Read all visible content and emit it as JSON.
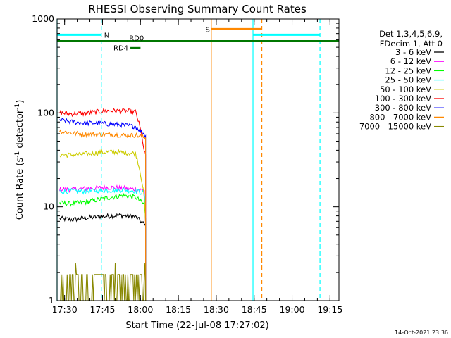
{
  "chart_data": {
    "type": "line",
    "title": "RHESSI Observing Summary Count Rates",
    "xlabel": "Start Time (22-Jul-08 17:27:02)",
    "ylabel_main": "Count Rate (s",
    "ylabel_sup1": "-1",
    "ylabel_mid": " detector",
    "ylabel_sup2": "-1",
    "ylabel_end": ")",
    "x_unit": "minutes after 17:27:02 UT",
    "xlim": [
      0,
      111.5
    ],
    "ylim": [
      1,
      1000
    ],
    "y_scale": "log",
    "x_ticks": [
      {
        "t": 2.97,
        "label": "17:30"
      },
      {
        "t": 17.97,
        "label": "17:45"
      },
      {
        "t": 32.97,
        "label": "18:00"
      },
      {
        "t": 47.97,
        "label": "18:15"
      },
      {
        "t": 62.97,
        "label": "18:30"
      },
      {
        "t": 77.97,
        "label": "18:45"
      },
      {
        "t": 92.97,
        "label": "19:00"
      },
      {
        "t": 107.97,
        "label": "19:15"
      }
    ],
    "y_ticks": [
      {
        "v": 1,
        "label": "1"
      },
      {
        "v": 10,
        "label": "10"
      },
      {
        "v": 100,
        "label": "100"
      },
      {
        "v": 1000,
        "label": "1000"
      }
    ],
    "legend_title_1": "Det 1,3,4,5,6,9,",
    "legend_title_2": "FDecim 1, Att 0",
    "legend_position": "outside-right",
    "series": [
      {
        "name": "3 - 6 keV",
        "color": "#000000",
        "t": [
          1,
          6,
          11,
          16,
          21,
          26,
          31,
          34.5,
          35
        ],
        "values": [
          7.5,
          7.3,
          7.6,
          7.8,
          8.0,
          8.1,
          7.8,
          6.5,
          6.2
        ]
      },
      {
        "name": "6 - 12 keV",
        "color": "#ff00ff",
        "t": [
          1,
          6,
          11,
          16,
          21,
          26,
          31,
          34.5,
          35
        ],
        "values": [
          15.5,
          15.2,
          15.6,
          15.9,
          16.1,
          15.8,
          15.4,
          15.0,
          6.5
        ]
      },
      {
        "name": "12 - 25 keV",
        "color": "#00ff00",
        "t": [
          1,
          6,
          11,
          16,
          21,
          26,
          31,
          34.5,
          35
        ],
        "values": [
          11.0,
          10.8,
          11.2,
          11.9,
          12.6,
          13.2,
          12.7,
          10.5,
          7.5
        ]
      },
      {
        "name": "25 - 50 keV",
        "color": "#00ffff",
        "t": [
          1,
          6,
          11,
          16,
          21,
          26,
          31,
          34.5,
          35
        ],
        "values": [
          14.5,
          14.8,
          14.6,
          14.9,
          15.0,
          15.2,
          14.8,
          14.0,
          7.0
        ]
      },
      {
        "name": "50 - 100 keV",
        "color": "#cccc00",
        "t": [
          1,
          6,
          11,
          16,
          21,
          26,
          31,
          34.5,
          35
        ],
        "values": [
          36,
          35.5,
          36.5,
          37.5,
          38.5,
          38,
          37,
          12,
          6.5
        ]
      },
      {
        "name": "100 - 300 keV",
        "color": "#ff0000",
        "t": [
          1,
          6,
          11,
          16,
          21,
          26,
          31,
          34.5,
          35
        ],
        "values": [
          100,
          98,
          99,
          103,
          106,
          105,
          103,
          38,
          36
        ]
      },
      {
        "name": "300 - 800 keV",
        "color": "#0000ff",
        "t": [
          1,
          6,
          11,
          16,
          21,
          26,
          31,
          34.5,
          35
        ],
        "values": [
          84,
          80,
          78,
          78,
          76,
          74,
          72,
          59,
          57
        ]
      },
      {
        "name": "800 - 7000 keV",
        "color": "#ff8800",
        "t": [
          1,
          6,
          11,
          16,
          21,
          26,
          31,
          34.5,
          35
        ],
        "values": [
          64,
          61,
          59,
          59,
          59,
          58,
          58,
          55,
          54
        ]
      },
      {
        "name": "7000 - 15000 keV",
        "color": "#888800",
        "t": [
          1,
          6,
          11,
          16,
          21,
          26,
          31,
          34.5,
          35
        ],
        "values": [
          1.0,
          1.9,
          1.0,
          1.9,
          1.0,
          1.9,
          2.5,
          1.9,
          1.0
        ]
      }
    ],
    "flags": [
      {
        "label": "N",
        "color": "#00ffff",
        "segments": [
          [
            0,
            17.5
          ],
          [
            77.5,
            104
          ]
        ],
        "level": 680
      },
      {
        "label": "S",
        "color": "#ff8800",
        "segments": [
          [
            61,
            81
          ]
        ],
        "level": 780
      },
      {
        "label": "RD0",
        "color": "#007700",
        "segments": [
          [
            0,
            111.5
          ]
        ],
        "level": 580
      },
      {
        "label": "RD4",
        "color": "#007700",
        "segments": [
          [
            29,
            33
          ]
        ],
        "level": 490
      }
    ],
    "vlines": [
      {
        "t": 0,
        "color": "#00ffff",
        "style": "solid"
      },
      {
        "t": 17.5,
        "color": "#00ffff",
        "style": "dashed"
      },
      {
        "t": 61,
        "color": "#ff8800",
        "style": "solid"
      },
      {
        "t": 77.5,
        "color": "#00ffff",
        "style": "solid"
      },
      {
        "t": 81,
        "color": "#ff8800",
        "style": "dashed"
      },
      {
        "t": 104,
        "color": "#00ffff",
        "style": "dashed"
      }
    ]
  },
  "footer": {
    "timestamp": "14-Oct-2021 23:36"
  }
}
